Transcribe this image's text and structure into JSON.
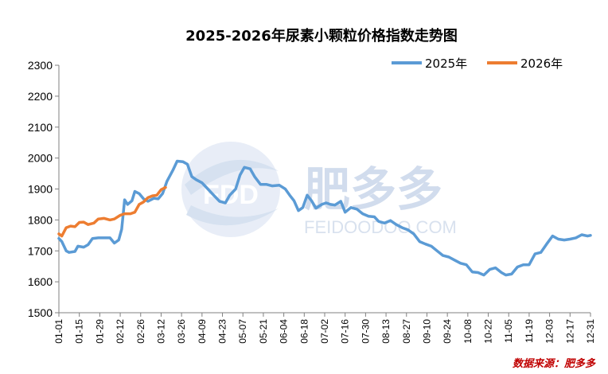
{
  "chart_data": {
    "type": "line",
    "title": "2025-2026年尿素小颗粒价格指数走势图",
    "xlabel": "",
    "ylabel": "",
    "ylim": [
      1500,
      2300
    ],
    "yticks": [
      1500,
      1600,
      1700,
      1800,
      1900,
      2000,
      2100,
      2200,
      2300
    ],
    "x_domain": [
      "01-01",
      "12-31"
    ],
    "categories": [
      "01-01",
      "01-15",
      "01-29",
      "02-12",
      "02-26",
      "03-12",
      "03-26",
      "04-09",
      "04-23",
      "05-07",
      "05-21",
      "06-04",
      "06-18",
      "07-02",
      "07-16",
      "07-30",
      "08-13",
      "08-27",
      "09-10",
      "09-24",
      "10-08",
      "10-22",
      "11-05",
      "11-19",
      "12-03",
      "12-17",
      "12-31"
    ],
    "grid": false,
    "legend_position": "top-right",
    "series": [
      {
        "name": "2025年",
        "color": "#5b9bd5",
        "points": [
          [
            "01-01",
            1740
          ],
          [
            "01-03",
            1730
          ],
          [
            "01-06",
            1700
          ],
          [
            "01-08",
            1695
          ],
          [
            "01-12",
            1698
          ],
          [
            "01-14",
            1715
          ],
          [
            "01-18",
            1712
          ],
          [
            "01-21",
            1720
          ],
          [
            "01-24",
            1740
          ],
          [
            "01-28",
            1742
          ],
          [
            "02-05",
            1742
          ],
          [
            "02-08",
            1725
          ],
          [
            "02-11",
            1735
          ],
          [
            "02-13",
            1770
          ],
          [
            "02-15",
            1865
          ],
          [
            "02-17",
            1850
          ],
          [
            "02-20",
            1862
          ],
          [
            "02-22",
            1892
          ],
          [
            "02-25",
            1885
          ],
          [
            "02-28",
            1868
          ],
          [
            "03-03",
            1860
          ],
          [
            "03-07",
            1870
          ],
          [
            "03-10",
            1868
          ],
          [
            "03-13",
            1885
          ],
          [
            "03-16",
            1925
          ],
          [
            "03-20",
            1960
          ],
          [
            "03-23",
            1990
          ],
          [
            "03-27",
            1988
          ],
          [
            "03-30",
            1980
          ],
          [
            "04-02",
            1940
          ],
          [
            "04-05",
            1930
          ],
          [
            "04-09",
            1920
          ],
          [
            "04-13",
            1900
          ],
          [
            "04-17",
            1880
          ],
          [
            "04-21",
            1860
          ],
          [
            "04-25",
            1855
          ],
          [
            "04-28",
            1880
          ],
          [
            "05-02",
            1900
          ],
          [
            "05-05",
            1945
          ],
          [
            "05-08",
            1970
          ],
          [
            "05-12",
            1965
          ],
          [
            "05-15",
            1940
          ],
          [
            "05-19",
            1915
          ],
          [
            "05-23",
            1915
          ],
          [
            "05-27",
            1910
          ],
          [
            "06-01",
            1912
          ],
          [
            "06-05",
            1900
          ],
          [
            "06-08",
            1880
          ],
          [
            "06-11",
            1862
          ],
          [
            "06-14",
            1830
          ],
          [
            "06-17",
            1840
          ],
          [
            "06-20",
            1880
          ],
          [
            "06-23",
            1862
          ],
          [
            "06-26",
            1838
          ],
          [
            "06-30",
            1850
          ],
          [
            "07-03",
            1855
          ],
          [
            "07-06",
            1850
          ],
          [
            "07-09",
            1848
          ],
          [
            "07-13",
            1860
          ],
          [
            "07-16",
            1825
          ],
          [
            "07-20",
            1840
          ],
          [
            "07-24",
            1835
          ],
          [
            "07-28",
            1820
          ],
          [
            "08-01",
            1812
          ],
          [
            "08-05",
            1810
          ],
          [
            "08-08",
            1795
          ],
          [
            "08-12",
            1790
          ],
          [
            "08-16",
            1798
          ],
          [
            "08-20",
            1785
          ],
          [
            "08-24",
            1775
          ],
          [
            "08-28",
            1768
          ],
          [
            "09-01",
            1755
          ],
          [
            "09-05",
            1730
          ],
          [
            "09-09",
            1722
          ],
          [
            "09-13",
            1715
          ],
          [
            "09-17",
            1700
          ],
          [
            "09-21",
            1685
          ],
          [
            "09-25",
            1680
          ],
          [
            "09-29",
            1670
          ],
          [
            "10-03",
            1660
          ],
          [
            "10-07",
            1655
          ],
          [
            "10-11",
            1632
          ],
          [
            "10-15",
            1630
          ],
          [
            "10-19",
            1622
          ],
          [
            "10-23",
            1640
          ],
          [
            "10-27",
            1645
          ],
          [
            "10-31",
            1630
          ],
          [
            "11-03",
            1622
          ],
          [
            "11-07",
            1625
          ],
          [
            "11-11",
            1648
          ],
          [
            "11-15",
            1655
          ],
          [
            "11-19",
            1655
          ],
          [
            "11-23",
            1690
          ],
          [
            "11-27",
            1695
          ],
          [
            "12-01",
            1722
          ],
          [
            "12-05",
            1748
          ],
          [
            "12-09",
            1738
          ],
          [
            "12-13",
            1735
          ],
          [
            "12-17",
            1738
          ],
          [
            "12-21",
            1742
          ],
          [
            "12-25",
            1752
          ],
          [
            "12-29",
            1748
          ],
          [
            "12-31",
            1750
          ]
        ]
      },
      {
        "name": "2026年",
        "color": "#ed7d31",
        "points": [
          [
            "01-01",
            1755
          ],
          [
            "01-03",
            1748
          ],
          [
            "01-06",
            1775
          ],
          [
            "01-09",
            1780
          ],
          [
            "01-12",
            1778
          ],
          [
            "01-15",
            1792
          ],
          [
            "01-18",
            1793
          ],
          [
            "01-21",
            1785
          ],
          [
            "01-25",
            1790
          ],
          [
            "01-28",
            1803
          ],
          [
            "02-01",
            1805
          ],
          [
            "02-05",
            1800
          ],
          [
            "02-08",
            1803
          ],
          [
            "02-12",
            1815
          ],
          [
            "02-15",
            1820
          ],
          [
            "02-19",
            1820
          ],
          [
            "02-22",
            1825
          ],
          [
            "02-25",
            1850
          ],
          [
            "02-28",
            1858
          ],
          [
            "03-03",
            1872
          ],
          [
            "03-06",
            1878
          ],
          [
            "03-09",
            1880
          ],
          [
            "03-12",
            1898
          ],
          [
            "03-15",
            1905
          ]
        ]
      }
    ],
    "source_note": "数据来源：肥多多",
    "watermark": {
      "logo_text": "FDD",
      "brand_cn": "肥多多",
      "brand_en": "FEIDOODOO.COM"
    }
  },
  "colors": {
    "axis": "#808080",
    "series_2025": "#5b9bd5",
    "series_2026": "#ed7d31",
    "source_text": "#c00000"
  }
}
